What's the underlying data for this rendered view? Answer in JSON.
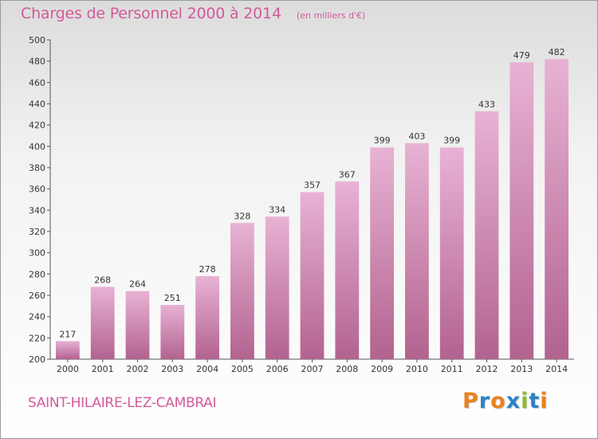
{
  "title": "Charges de Personnel 2000 à 2014",
  "subtitle": "(en milliers d'€)",
  "city": "SAINT-HILAIRE-LEZ-CAMBRAI",
  "logo": "Proxiti",
  "colors": {
    "bar_light": "#e8b2d5",
    "bar_dark": "#b2638f",
    "accent": "#d45a9a",
    "logo": [
      "#e8831f",
      "#2b84c6",
      "#e8831f",
      "#2b84c6",
      "#8fbf2a",
      "#2b84c6",
      "#e8831f"
    ]
  },
  "chart_data": {
    "type": "bar",
    "title": "Charges de Personnel 2000 à 2014",
    "subtitle": "(en milliers d'€)",
    "categories": [
      "2000",
      "2001",
      "2002",
      "2003",
      "2004",
      "2005",
      "2006",
      "2007",
      "2008",
      "2009",
      "2010",
      "2011",
      "2012",
      "2013",
      "2014"
    ],
    "values": [
      217,
      268,
      264,
      251,
      278,
      328,
      334,
      357,
      367,
      399,
      403,
      399,
      433,
      479,
      482
    ],
    "ylim": [
      200,
      500
    ],
    "yticks": [
      200,
      220,
      240,
      260,
      280,
      300,
      320,
      340,
      360,
      380,
      400,
      420,
      440,
      460,
      480,
      500
    ],
    "grid": false
  }
}
